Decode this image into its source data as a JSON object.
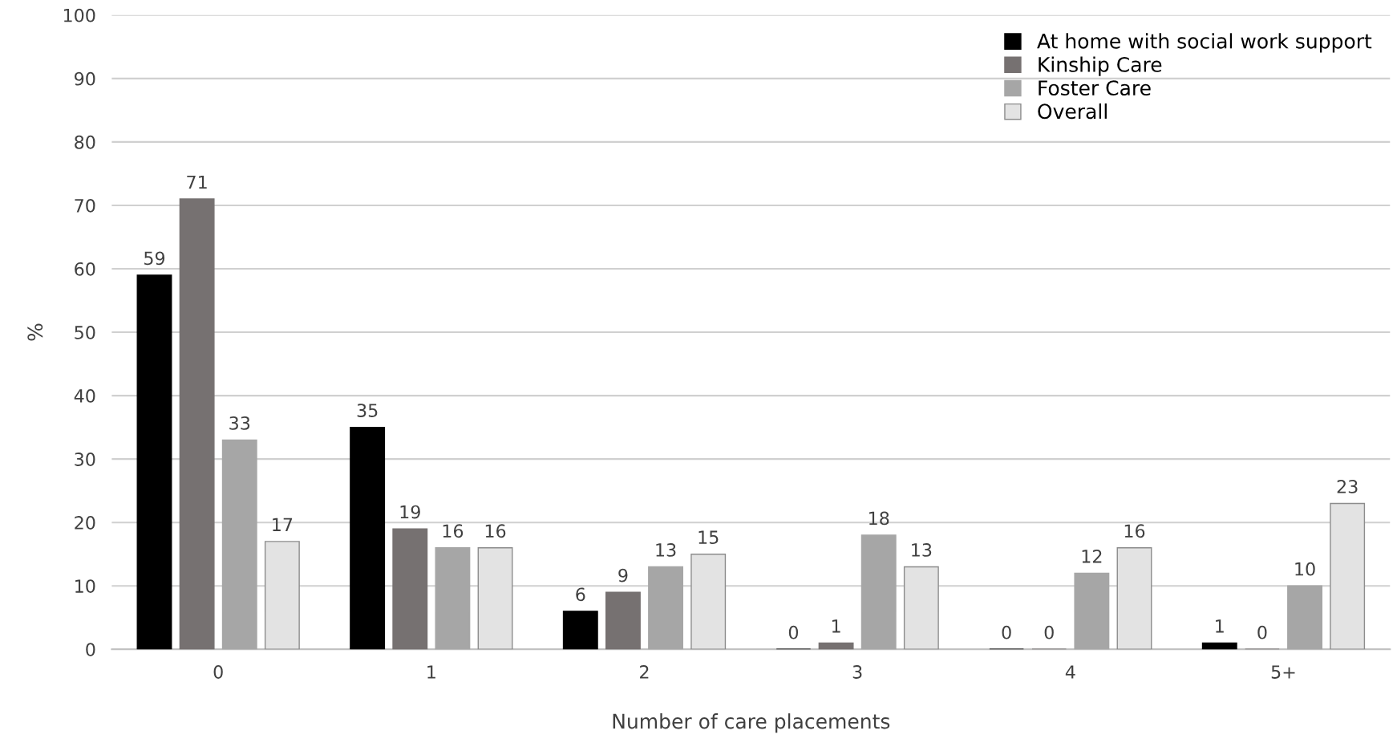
{
  "chart_data": {
    "type": "bar",
    "xlabel": "Number of care placements",
    "ylabel": "%",
    "categories": [
      "0",
      "1",
      "2",
      "3",
      "4",
      "5+"
    ],
    "series": [
      {
        "name": "At home with social work support",
        "color": "#000000",
        "values": [
          59,
          35,
          6,
          0,
          0,
          1
        ]
      },
      {
        "name": "Kinship Care",
        "color": "#767171",
        "values": [
          71,
          19,
          9,
          1,
          0,
          0
        ]
      },
      {
        "name": "Foster Care",
        "color": "#a6a6a6",
        "values": [
          33,
          16,
          13,
          18,
          12,
          10
        ]
      },
      {
        "name": "Overall",
        "color": "#e3e3e3",
        "values": [
          17,
          16,
          15,
          13,
          16,
          23
        ]
      }
    ],
    "ylim": [
      0,
      100
    ],
    "yticks": [
      0,
      10,
      20,
      30,
      40,
      50,
      60,
      70,
      80,
      90,
      100
    ],
    "grid": "y",
    "legend": "top right",
    "data_labels": true
  }
}
